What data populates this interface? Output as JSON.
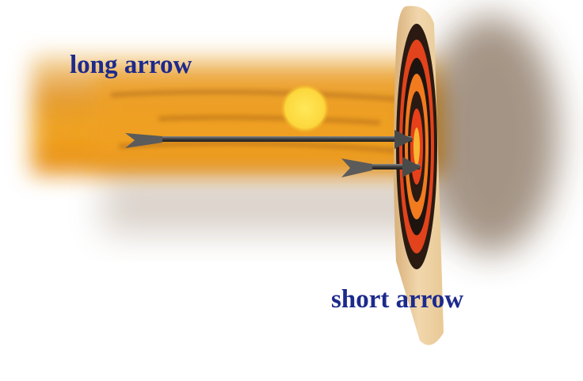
{
  "labels": {
    "long": "long arrow",
    "short": "short arrow"
  }
}
